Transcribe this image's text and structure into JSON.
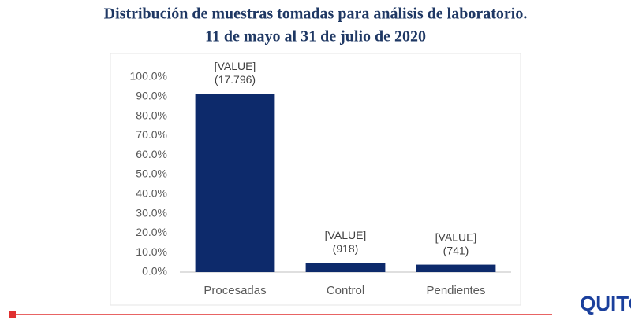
{
  "chart_data": {
    "type": "bar",
    "title": "Distribución de muestras tomadas para análisis de laboratorio.",
    "subtitle": "11 de mayo al 31 de julio de 2020",
    "categories": [
      "Procesadas",
      "Control",
      "Pendientes"
    ],
    "values": [
      91.5,
      4.7,
      3.8
    ],
    "value_labels": [
      "[VALUE]",
      "[VALUE]",
      "[VALUE]"
    ],
    "annotations": [
      "(17.796)",
      "(918)",
      "(741)"
    ],
    "color": "#0d2a6b",
    "ylim": [
      0,
      100
    ],
    "yticks": [
      {
        "value": 0,
        "label": "0.0%"
      },
      {
        "value": 10,
        "label": "10.0%"
      },
      {
        "value": 20,
        "label": "20.0%"
      },
      {
        "value": 30,
        "label": "30.0%"
      },
      {
        "value": 40,
        "label": "40.0%"
      },
      {
        "value": 50,
        "label": "50.0%"
      },
      {
        "value": 60,
        "label": "60.0%"
      },
      {
        "value": 70,
        "label": "70.0%"
      },
      {
        "value": 80,
        "label": "80.0%"
      },
      {
        "value": 90,
        "label": "90.0%"
      },
      {
        "value": 100,
        "label": "100.0%"
      }
    ],
    "grid": false
  },
  "footer": {
    "logo": "QUITO"
  }
}
